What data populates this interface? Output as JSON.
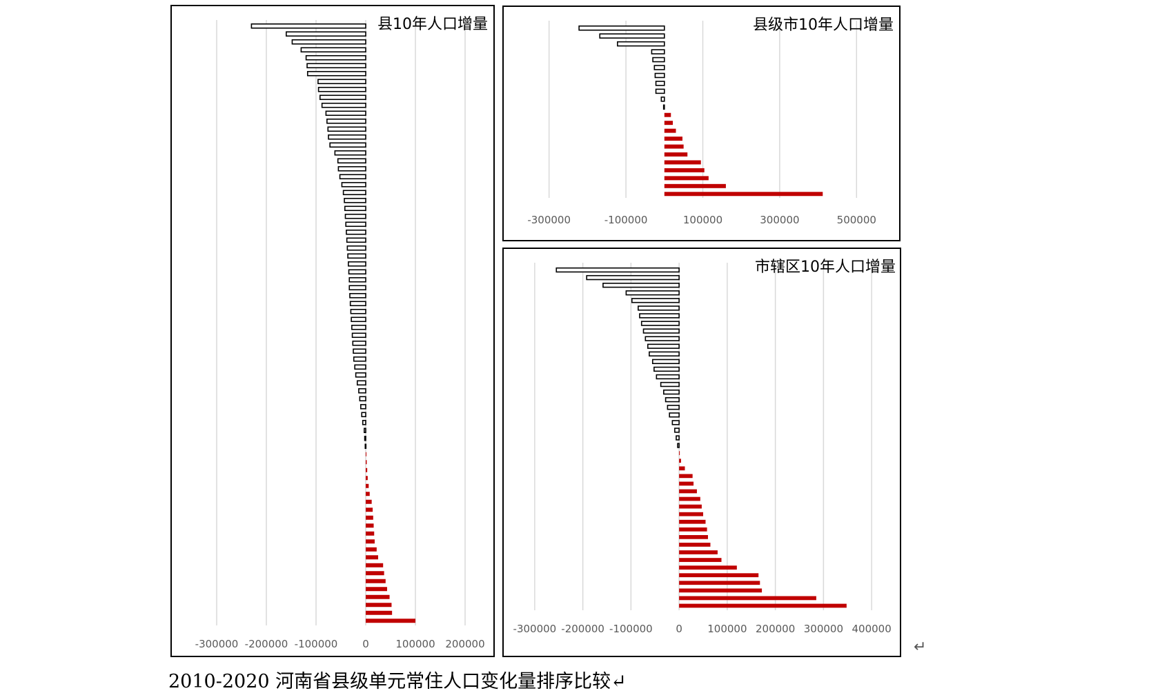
{
  "caption": "2010-2020 河南省县级单元常住人口变化量排序比较↵",
  "return_mark": "↵",
  "chart_data": [
    {
      "type": "bar",
      "orientation": "horizontal",
      "title": "县10年人口增量",
      "xlim": [
        -350000,
        250000
      ],
      "ticks": [
        "-300000",
        "-200000",
        "-100000",
        "0",
        "100000",
        "200000"
      ],
      "tick_values": [
        -300000,
        -200000,
        -100000,
        0,
        100000,
        200000
      ],
      "grid": true,
      "negative_style": "outline-black",
      "positive_color": "#c00000",
      "values": [
        -230000,
        -160000,
        -148000,
        -130000,
        -120000,
        -118000,
        -117000,
        -96000,
        -95000,
        -92000,
        -88000,
        -80000,
        -78000,
        -76000,
        -75000,
        -72000,
        -62000,
        -56000,
        -55000,
        -52000,
        -48000,
        -45000,
        -43000,
        -42000,
        -41000,
        -40000,
        -39000,
        -38000,
        -37000,
        -36000,
        -35000,
        -34000,
        -33000,
        -33000,
        -32000,
        -31000,
        -30000,
        -29000,
        -28000,
        -27000,
        -26000,
        -25000,
        -24000,
        -22000,
        -20000,
        -17000,
        -14000,
        -12000,
        -10000,
        -8000,
        -6000,
        -3000,
        -2000,
        -1000,
        1000,
        2000,
        3000,
        4000,
        6000,
        8000,
        12000,
        14000,
        15000,
        16000,
        17000,
        18000,
        22000,
        25000,
        35000,
        37000,
        40000,
        43000,
        48000,
        52000,
        53000,
        100000
      ]
    },
    {
      "type": "bar",
      "orientation": "horizontal",
      "title": "县级市10年人口增量",
      "xlim": [
        -400000,
        600000
      ],
      "ticks": [
        "-300000",
        "-100000",
        "100000",
        "300000",
        "500000"
      ],
      "tick_values": [
        -300000,
        -100000,
        100000,
        300000,
        500000
      ],
      "grid": true,
      "negative_style": "outline-black",
      "positive_color": "#c00000",
      "values": [
        -222000,
        -168000,
        -122000,
        -33000,
        -30000,
        -26000,
        -24000,
        -22000,
        -22000,
        -8000,
        -2000,
        17000,
        22000,
        30000,
        47000,
        50000,
        60000,
        95000,
        104000,
        115000,
        160000,
        412000
      ]
    },
    {
      "type": "bar",
      "orientation": "horizontal",
      "title": "市辖区10年人口增量",
      "xlim": [
        -350000,
        450000
      ],
      "ticks": [
        "-300000",
        "-200000",
        "-100000",
        "0",
        "100000",
        "200000",
        "300000",
        "400000"
      ],
      "tick_values": [
        -300000,
        -200000,
        -100000,
        0,
        100000,
        200000,
        300000,
        400000
      ],
      "grid": true,
      "negative_style": "outline-black",
      "positive_color": "#c00000",
      "values": [
        -255000,
        -192000,
        -158000,
        -110000,
        -98000,
        -85000,
        -82000,
        -78000,
        -74000,
        -70000,
        -65000,
        -62000,
        -55000,
        -52000,
        -47000,
        -38000,
        -32000,
        -28000,
        -24000,
        -20000,
        -14000,
        -9000,
        -6000,
        -3000,
        1000,
        4000,
        12000,
        28000,
        30000,
        37000,
        44000,
        47000,
        50000,
        55000,
        58000,
        60000,
        65000,
        80000,
        88000,
        120000,
        165000,
        168000,
        172000,
        285000,
        348000
      ]
    }
  ]
}
